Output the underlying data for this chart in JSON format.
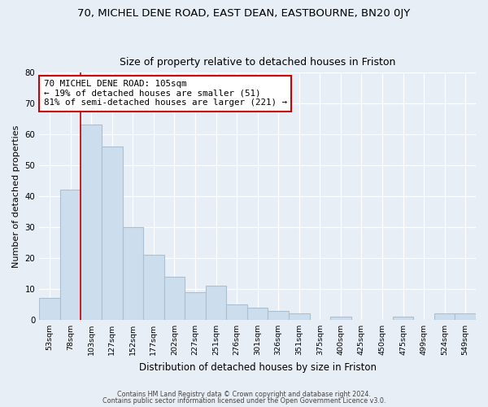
{
  "title": "70, MICHEL DENE ROAD, EAST DEAN, EASTBOURNE, BN20 0JY",
  "subtitle": "Size of property relative to detached houses in Friston",
  "xlabel": "Distribution of detached houses by size in Friston",
  "ylabel": "Number of detached properties",
  "bar_labels": [
    "53sqm",
    "78sqm",
    "103sqm",
    "127sqm",
    "152sqm",
    "177sqm",
    "202sqm",
    "227sqm",
    "251sqm",
    "276sqm",
    "301sqm",
    "326sqm",
    "351sqm",
    "375sqm",
    "400sqm",
    "425sqm",
    "450sqm",
    "475sqm",
    "499sqm",
    "524sqm",
    "549sqm"
  ],
  "bar_values": [
    7,
    42,
    63,
    56,
    30,
    21,
    14,
    9,
    11,
    5,
    4,
    3,
    2,
    0,
    1,
    0,
    0,
    1,
    0,
    2,
    2
  ],
  "bar_color": "#ccdded",
  "bar_edge_color": "#aabfcf",
  "vline_color": "#cc0000",
  "annotation_text": "70 MICHEL DENE ROAD: 105sqm\n← 19% of detached houses are smaller (51)\n81% of semi-detached houses are larger (221) →",
  "annotation_box_color": "#ffffff",
  "annotation_box_edge": "#cc0000",
  "footer1": "Contains HM Land Registry data © Crown copyright and database right 2024.",
  "footer2": "Contains public sector information licensed under the Open Government Licence v3.0.",
  "background_color": "#e8eef5",
  "plot_bg_color": "#e8eef5",
  "grid_color": "#ffffff",
  "ylim": [
    0,
    80
  ],
  "yticks": [
    0,
    10,
    20,
    30,
    40,
    50,
    60,
    70,
    80
  ],
  "title_fontsize": 9.5,
  "subtitle_fontsize": 9,
  "annotation_fontsize": 7.8,
  "ylabel_fontsize": 8,
  "xlabel_fontsize": 8.5,
  "tick_fontsize": 6.8
}
